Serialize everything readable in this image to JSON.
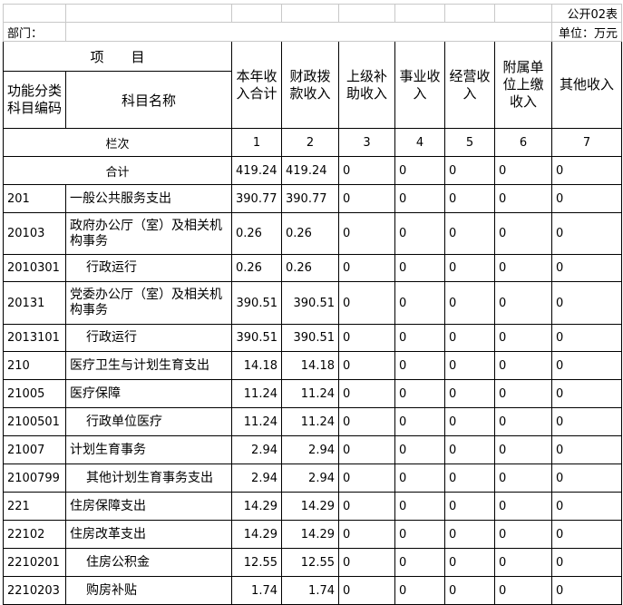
{
  "form_label": "公开02表",
  "dept_label": "部门：",
  "unit_label": "单位：万元",
  "header": {
    "item": "项　　目",
    "code": "功能分类科目编码",
    "name": "科目名称",
    "cols": [
      "本年收入合计",
      "财政拨款收入",
      "上级补助收入",
      "事业收入",
      "经营收入",
      "附属单位上缴收入",
      "其他收入"
    ]
  },
  "col_index_label": "栏次",
  "col_index": [
    "1",
    "2",
    "3",
    "4",
    "5",
    "6",
    "7"
  ],
  "total": {
    "label": "合计",
    "values": [
      "419.24",
      "419.24",
      "0",
      "0",
      "0",
      "0",
      "0"
    ]
  },
  "rows": [
    {
      "code": "201",
      "name": "一般公共服务支出",
      "values": [
        "390.77",
        "390.77",
        "0",
        "0",
        "0",
        "0",
        "0"
      ]
    },
    {
      "code": "20103",
      "name": "政府办公厅（室）及相关机构事务",
      "values": [
        "0.26",
        "0.26",
        "0",
        "0",
        "0",
        "0",
        "0"
      ]
    },
    {
      "code": "2010301",
      "name": "行政运行",
      "values": [
        "0.26",
        "0.26",
        "0",
        "0",
        "0",
        "0",
        "0"
      ]
    },
    {
      "code": "20131",
      "name": "党委办公厅（室）及相关机构事务",
      "values": [
        "390.51",
        "390.51",
        "0",
        "0",
        "0",
        "0",
        "0"
      ]
    },
    {
      "code": "2013101",
      "name": "行政运行",
      "values": [
        "390.51",
        "390.51",
        "0",
        "0",
        "0",
        "0",
        "0"
      ]
    },
    {
      "code": "210",
      "name": "医疗卫生与计划生育支出",
      "values": [
        "14.18",
        "14.18",
        "0",
        "0",
        "0",
        "0",
        "0"
      ]
    },
    {
      "code": "21005",
      "name": "医疗保障",
      "values": [
        "11.24",
        "11.24",
        "0",
        "0",
        "0",
        "0",
        "0"
      ]
    },
    {
      "code": "2100501",
      "name": "行政单位医疗",
      "values": [
        "11.24",
        "11.24",
        "0",
        "0",
        "0",
        "0",
        "0"
      ]
    },
    {
      "code": "21007",
      "name": "计划生育事务",
      "values": [
        "2.94",
        "2.94",
        "0",
        "0",
        "0",
        "0",
        "0"
      ]
    },
    {
      "code": "2100799",
      "name": "其他计划生育事务支出",
      "values": [
        "2.94",
        "2.94",
        "0",
        "0",
        "0",
        "0",
        "0"
      ]
    },
    {
      "code": "221",
      "name": "住房保障支出",
      "values": [
        "14.29",
        "14.29",
        "0",
        "0",
        "0",
        "0",
        "0"
      ]
    },
    {
      "code": "22102",
      "name": "住房改革支出",
      "values": [
        "14.29",
        "14.29",
        "0",
        "0",
        "0",
        "0",
        "0"
      ]
    },
    {
      "code": "2210201",
      "name": "住房公积金",
      "values": [
        "12.55",
        "12.55",
        "0",
        "0",
        "0",
        "0",
        "0"
      ]
    },
    {
      "code": "2210203",
      "name": "购房补贴",
      "values": [
        "1.74",
        "1.74",
        "0",
        "0",
        "0",
        "0",
        "0"
      ]
    }
  ]
}
